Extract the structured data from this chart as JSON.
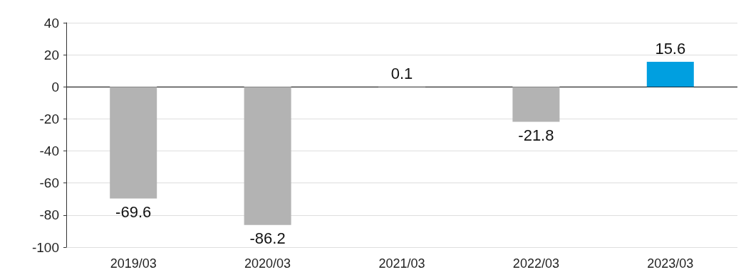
{
  "chart_data": {
    "type": "bar",
    "categories": [
      "2019/03",
      "2020/03",
      "2021/03",
      "2022/03",
      "2023/03"
    ],
    "values": [
      -69.6,
      -86.2,
      0.1,
      -21.8,
      15.6
    ],
    "colors": [
      "#b3b3b3",
      "#b3b3b3",
      "#b3b3b3",
      "#b3b3b3",
      "#009fe0"
    ],
    "ylim": [
      -100,
      40
    ],
    "yticks": [
      -100,
      -80,
      -60,
      -40,
      -20,
      0,
      20,
      40
    ],
    "grid": "y",
    "data_labels": true
  }
}
